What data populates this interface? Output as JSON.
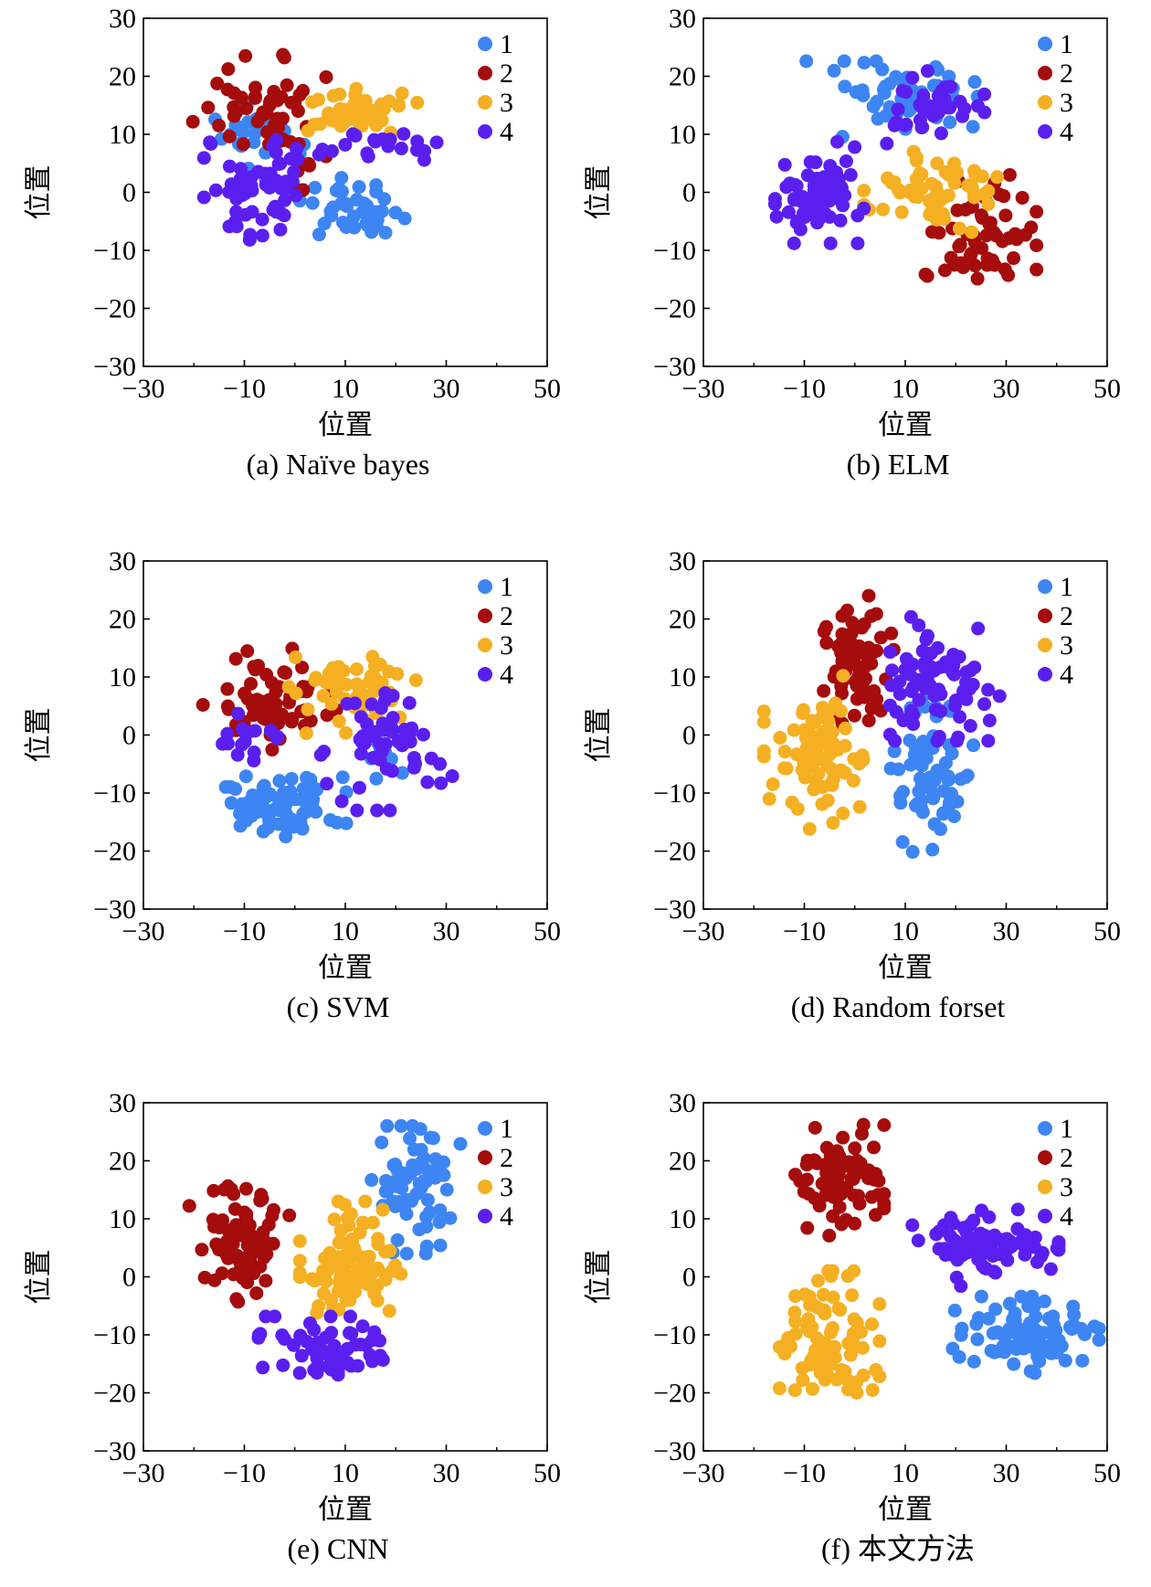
{
  "series_colors": {
    "1": "#3D85F2",
    "2": "#A50C0C",
    "3": "#F4B022",
    "4": "#5A1FEF"
  },
  "chart_data": [
    {
      "type": "scatter",
      "caption": "(a) Naïve bayes",
      "xlabel": "位置",
      "ylabel": "位置",
      "xlim": [
        -30,
        50
      ],
      "ylim": [
        -30,
        30
      ],
      "xticks": [
        "−30",
        "−10",
        "10",
        "30",
        "50"
      ],
      "yticks": [
        "30",
        "20",
        "10",
        "0",
        "−10",
        "−20",
        "−30"
      ],
      "legend": [
        "1",
        "2",
        "3",
        "4"
      ],
      "clusters": [
        {
          "series": "1",
          "cx": -7,
          "cy": 9,
          "sx": 4,
          "sy": 3,
          "n": 25
        },
        {
          "series": "1",
          "cx": 12,
          "cy": -3,
          "sx": 5,
          "sy": 2.5,
          "n": 40
        },
        {
          "series": "2",
          "cx": -7,
          "cy": 16,
          "sx": 6,
          "sy": 3.5,
          "n": 45
        },
        {
          "series": "2",
          "cx": 0,
          "cy": 7,
          "sx": 3,
          "sy": 3,
          "n": 12
        },
        {
          "series": "3",
          "cx": 13,
          "cy": 14,
          "sx": 8,
          "sy": 2,
          "n": 45
        },
        {
          "series": "4",
          "cx": -7,
          "cy": 1,
          "sx": 5,
          "sy": 5,
          "n": 60
        },
        {
          "series": "4",
          "cx": 18,
          "cy": 8,
          "sx": 6,
          "sy": 1.5,
          "n": 20
        }
      ]
    },
    {
      "type": "scatter",
      "caption": "(b) ELM",
      "xlabel": "位置",
      "ylabel": "位置",
      "xlim": [
        -30,
        50
      ],
      "ylim": [
        -30,
        30
      ],
      "xticks": [
        "−30",
        "−10",
        "10",
        "30",
        "50"
      ],
      "yticks": [
        "30",
        "20",
        "10",
        "0",
        "−10",
        "−20",
        "−30"
      ],
      "legend": [
        "1",
        "2",
        "3",
        "4"
      ],
      "clusters": [
        {
          "series": "1",
          "cx": 8,
          "cy": 16,
          "sx": 8,
          "sy": 3,
          "n": 55
        },
        {
          "series": "2",
          "cx": 25,
          "cy": -8,
          "sx": 5,
          "sy": 5,
          "n": 55
        },
        {
          "series": "3",
          "cx": 15,
          "cy": 0,
          "sx": 6,
          "sy": 3.5,
          "n": 60
        },
        {
          "series": "4",
          "cx": -7,
          "cy": 0,
          "sx": 4,
          "sy": 4,
          "n": 70
        },
        {
          "series": "4",
          "cx": 15,
          "cy": 15,
          "sx": 6,
          "sy": 3,
          "n": 35
        }
      ]
    },
    {
      "type": "scatter",
      "caption": "(c) SVM",
      "xlabel": "位置",
      "ylabel": "位置",
      "xlim": [
        -30,
        50
      ],
      "ylim": [
        -30,
        30
      ],
      "xticks": [
        "−30",
        "−10",
        "10",
        "30",
        "50"
      ],
      "yticks": [
        "30",
        "20",
        "10",
        "0",
        "−10",
        "−20",
        "−30"
      ],
      "legend": [
        "1",
        "2",
        "3",
        "4"
      ],
      "clusters": [
        {
          "series": "1",
          "cx": -3,
          "cy": -12,
          "sx": 6,
          "sy": 2.5,
          "n": 70
        },
        {
          "series": "1",
          "cx": 18,
          "cy": -2,
          "sx": 2,
          "sy": 4,
          "n": 10
        },
        {
          "series": "2",
          "cx": -5,
          "cy": 5,
          "sx": 6,
          "sy": 4.5,
          "n": 60
        },
        {
          "series": "3",
          "cx": 12,
          "cy": 8,
          "sx": 6,
          "sy": 3.5,
          "n": 50
        },
        {
          "series": "4",
          "cx": 18,
          "cy": -2,
          "sx": 6,
          "sy": 5,
          "n": 55
        },
        {
          "series": "4",
          "cx": -10,
          "cy": 0,
          "sx": 3,
          "sy": 2,
          "n": 15
        }
      ]
    },
    {
      "type": "scatter",
      "caption": "(d) Random forset",
      "xlabel": "位置",
      "ylabel": "位置",
      "xlim": [
        -30,
        50
      ],
      "ylim": [
        -30,
        30
      ],
      "xticks": [
        "−30",
        "−10",
        "10",
        "30",
        "50"
      ],
      "yticks": [
        "30",
        "20",
        "10",
        "0",
        "−10",
        "−20",
        "−30"
      ],
      "legend": [
        "1",
        "2",
        "3",
        "4"
      ],
      "clusters": [
        {
          "series": "1",
          "cx": 15,
          "cy": -7,
          "sx": 4,
          "sy": 6,
          "n": 70
        },
        {
          "series": "2",
          "cx": 0,
          "cy": 13,
          "sx": 3.5,
          "sy": 5,
          "n": 65
        },
        {
          "series": "3",
          "cx": -7,
          "cy": -3,
          "sx": 5,
          "sy": 6,
          "n": 80
        },
        {
          "series": "4",
          "cx": 18,
          "cy": 10,
          "sx": 5,
          "sy": 5,
          "n": 75
        }
      ]
    },
    {
      "type": "scatter",
      "caption": "(e) CNN",
      "xlabel": "位置",
      "ylabel": "位置",
      "xlim": [
        -30,
        50
      ],
      "ylim": [
        -30,
        30
      ],
      "xticks": [
        "−30",
        "−10",
        "10",
        "30",
        "50"
      ],
      "yticks": [
        "30",
        "20",
        "10",
        "0",
        "−10",
        "−20",
        "−30"
      ],
      "legend": [
        "1",
        "2",
        "3",
        "4"
      ],
      "clusters": [
        {
          "series": "1",
          "cx": 24,
          "cy": 15,
          "sx": 4,
          "sy": 5,
          "n": 70
        },
        {
          "series": "2",
          "cx": -11,
          "cy": 6,
          "sx": 4.5,
          "sy": 5,
          "n": 80
        },
        {
          "series": "3",
          "cx": 12,
          "cy": 2,
          "sx": 5,
          "sy": 5,
          "n": 90
        },
        {
          "series": "4",
          "cx": 6,
          "cy": -13,
          "sx": 6,
          "sy": 2.8,
          "n": 65
        }
      ]
    },
    {
      "type": "scatter",
      "caption": "(f) 本文方法",
      "xlabel": "位置",
      "ylabel": "位置",
      "xlim": [
        -30,
        50
      ],
      "ylim": [
        -30,
        30
      ],
      "xticks": [
        "−30",
        "−10",
        "10",
        "30",
        "50"
      ],
      "yticks": [
        "30",
        "20",
        "10",
        "0",
        "−10",
        "−20",
        "−30"
      ],
      "legend": [
        "1",
        "2",
        "3",
        "4"
      ],
      "clusters": [
        {
          "series": "1",
          "cx": 33,
          "cy": -10,
          "sx": 7,
          "sy": 3,
          "n": 85
        },
        {
          "series": "2",
          "cx": -3,
          "cy": 17,
          "sx": 4,
          "sy": 4.5,
          "n": 85
        },
        {
          "series": "3",
          "cx": -5,
          "cy": -10,
          "sx": 4.5,
          "sy": 5,
          "n": 85
        },
        {
          "series": "4",
          "cx": 25,
          "cy": 5,
          "sx": 7,
          "sy": 3,
          "n": 80
        }
      ]
    }
  ]
}
